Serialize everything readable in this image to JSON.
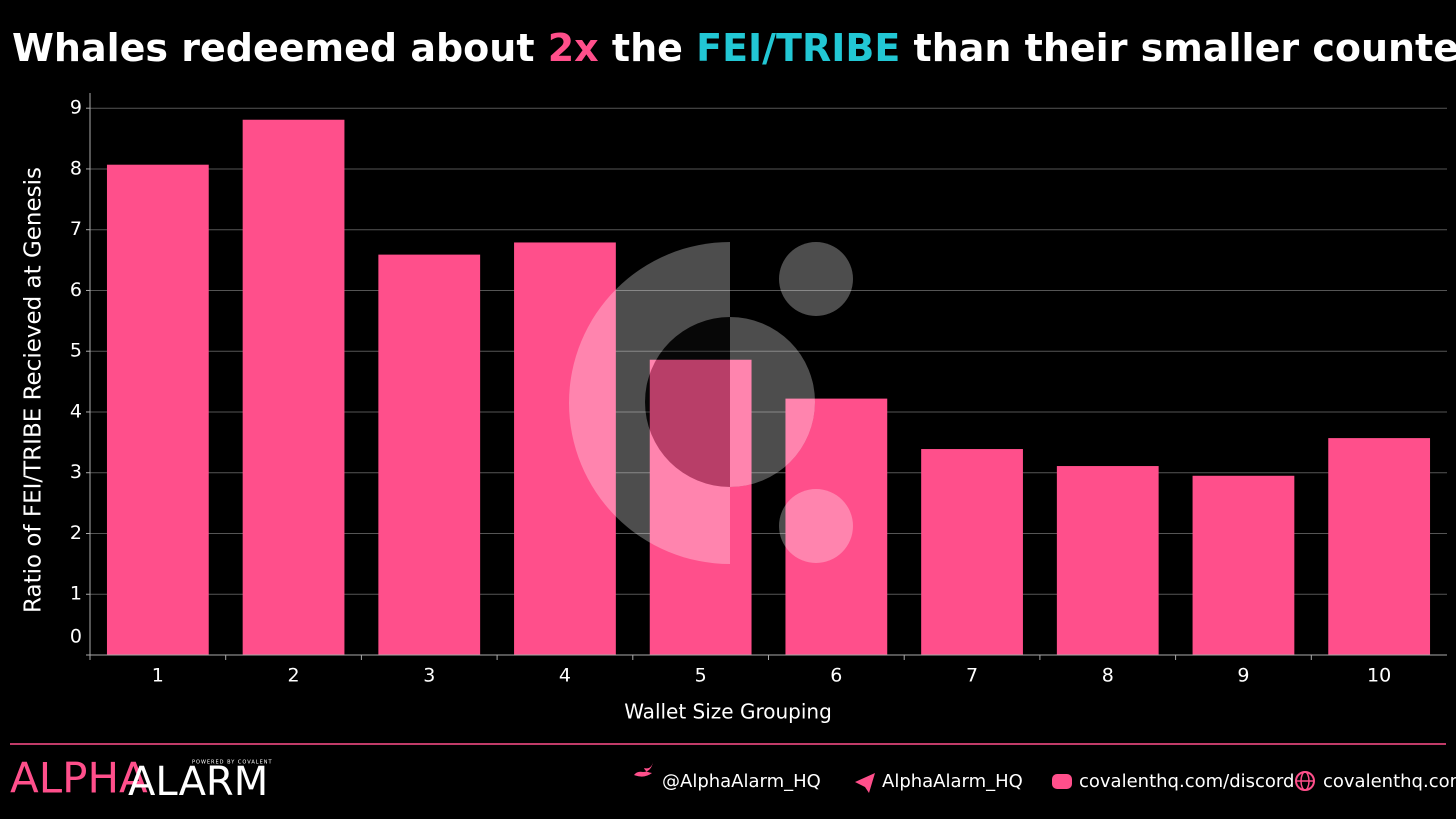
{
  "chart_data": {
    "type": "bar",
    "title_parts": [
      {
        "text": "Whales redeemed about ",
        "color": "#ffffff"
      },
      {
        "text": "2x",
        "color": "#ff4f8b"
      },
      {
        "text": " the ",
        "color": "#ffffff"
      },
      {
        "text": "FEI/TRIBE",
        "color": "#22c7d4"
      },
      {
        "text": " than their smaller counterparts.",
        "color": "#ffffff"
      }
    ],
    "x_label": "Wallet Size Grouping",
    "y_label": "Ratio of FEI/TRIBE Recieved at Genesis",
    "categories": [
      "1",
      "2",
      "3",
      "4",
      "5",
      "6",
      "7",
      "8",
      "9",
      "10"
    ],
    "values": [
      8.07,
      8.81,
      6.59,
      6.79,
      4.86,
      4.22,
      3.39,
      3.11,
      2.95,
      3.57
    ],
    "color": "#ff4f8b",
    "ylim": [
      0,
      9.25
    ],
    "yticks": [
      0,
      1,
      2,
      3,
      4,
      5,
      6,
      7,
      8,
      9
    ],
    "grid": true
  },
  "footer": {
    "logo_pink": "ALPHA",
    "logo_white": "ALARM",
    "logo_tag": "POWERED BY COVALENT",
    "links": [
      "@AlphaAlarm_HQ",
      "AlphaAlarm_HQ",
      "covalenthq.com/discord",
      "covalenthq.com"
    ]
  }
}
